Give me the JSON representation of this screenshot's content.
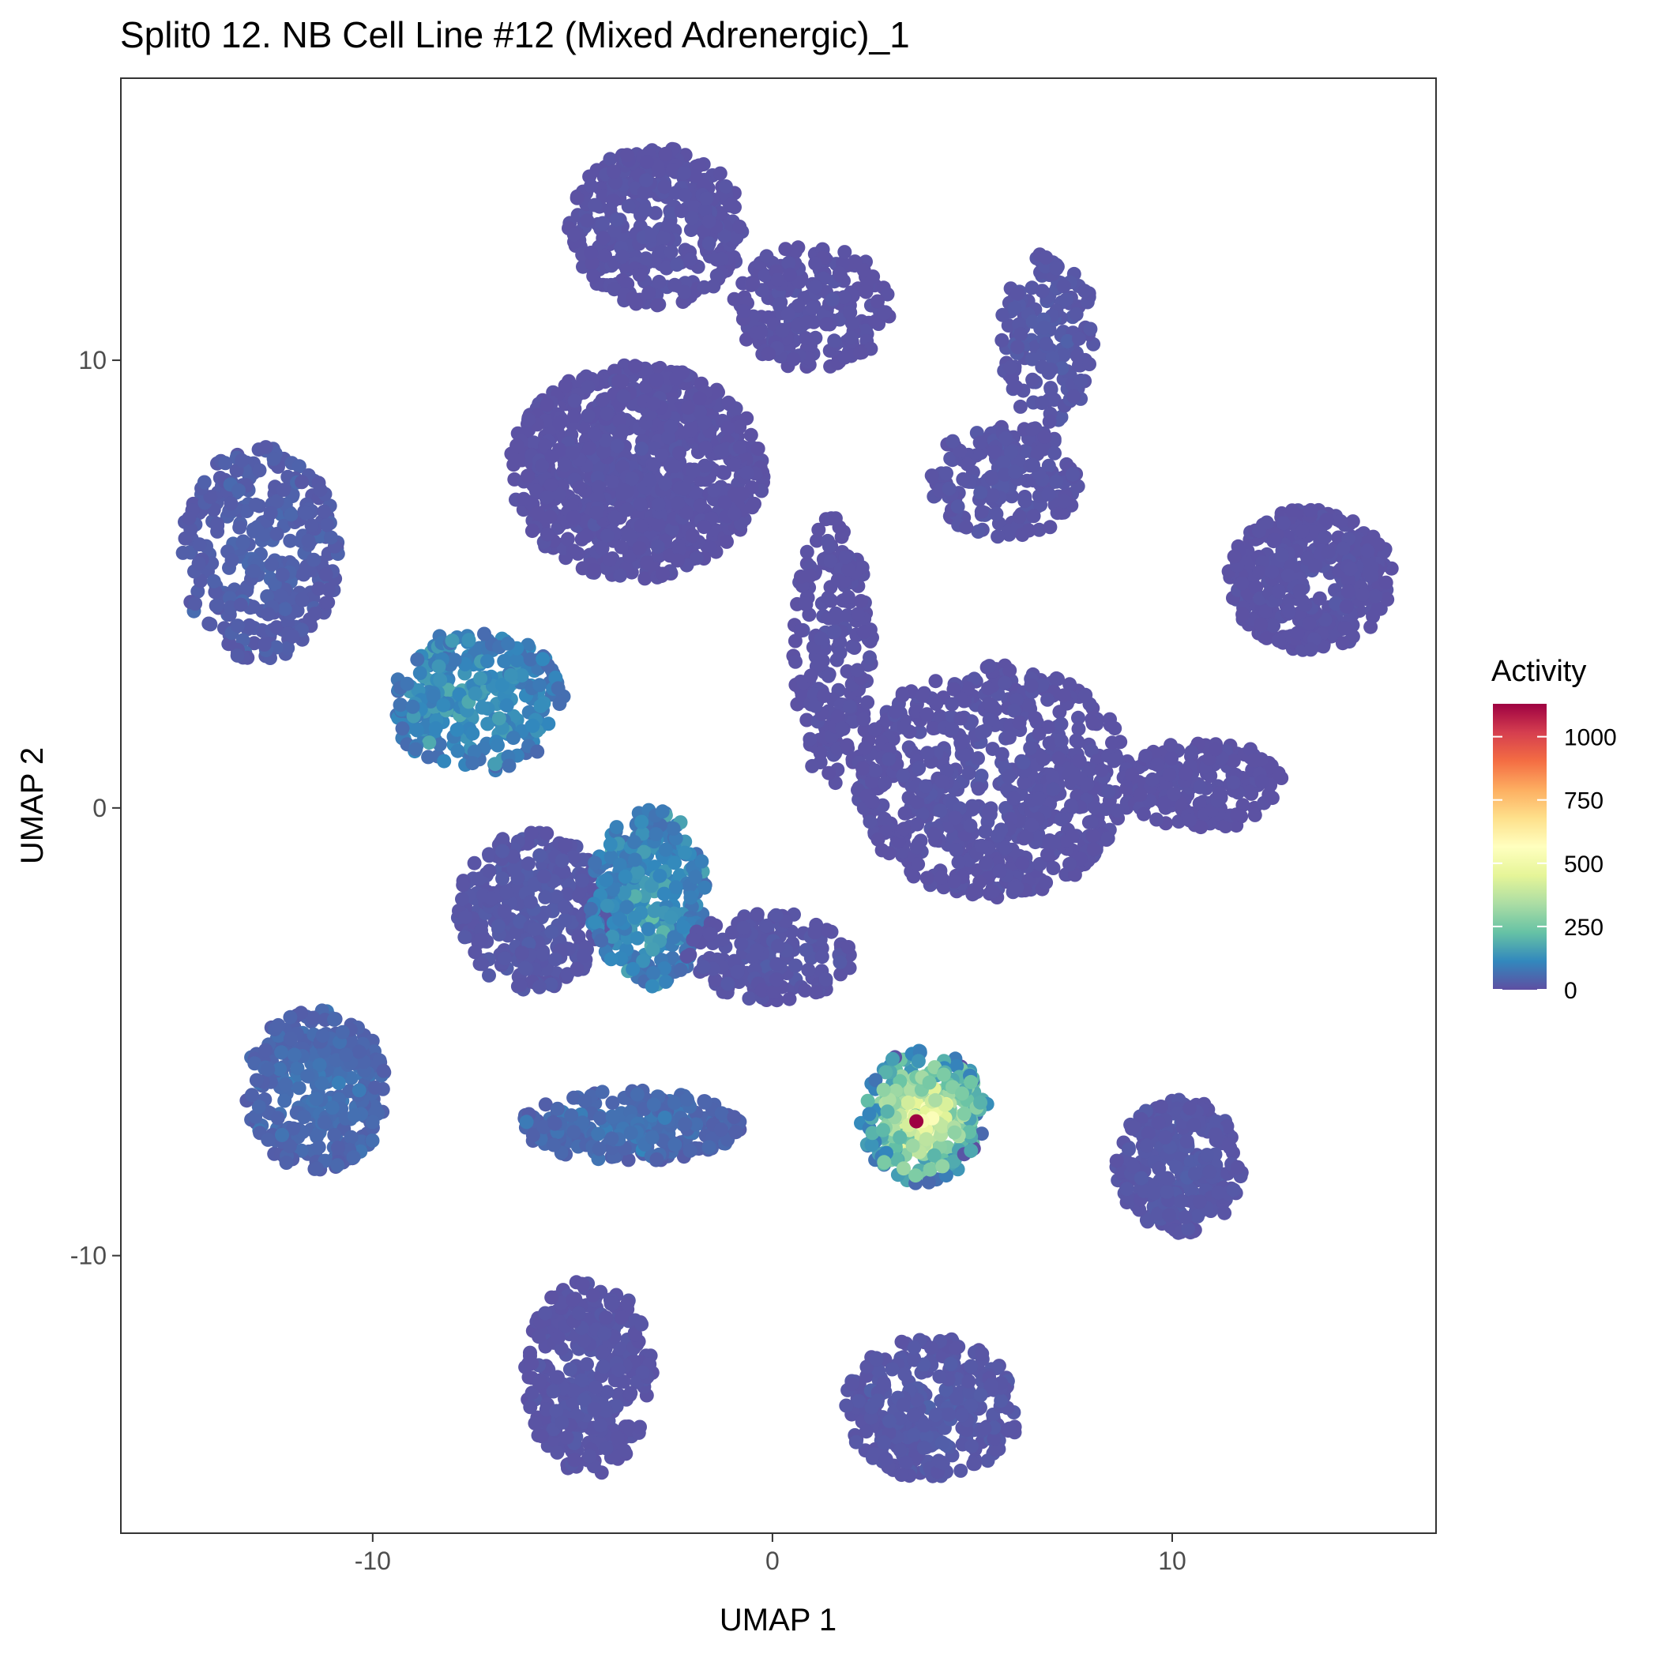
{
  "chart_data": {
    "type": "scatter",
    "title": "Split0 12. NB Cell Line #12 (Mixed Adrenergic)_1",
    "xlabel": "UMAP 1",
    "ylabel": "UMAP 2",
    "xlim": [
      -16.3,
      16.6
    ],
    "ylim": [
      -16.2,
      16.3
    ],
    "x_ticks": [
      -10,
      0,
      10
    ],
    "y_ticks": [
      -10,
      0,
      10
    ],
    "x_tick_labels": [
      "-10",
      "0",
      "10"
    ],
    "y_tick_labels": [
      "-10",
      "0",
      "10"
    ],
    "grid": false,
    "legend": {
      "title": "Activity",
      "position": "right",
      "type": "colorbar",
      "min": 0,
      "max": 1130,
      "ticks": [
        0,
        250,
        500,
        750,
        1000
      ],
      "tick_labels": [
        "0",
        "250",
        "500",
        "750",
        "1000"
      ],
      "colors": [
        "#5E4FA2",
        "#3288BD",
        "#66C2A5",
        "#ABDDA4",
        "#E6F598",
        "#FFFFBF",
        "#FEE08B",
        "#FDAE61",
        "#F46D43",
        "#D53E4F",
        "#9E0142"
      ]
    },
    "clusters": [
      {
        "cx": -3.4,
        "cy": 7.5,
        "rx": 3.2,
        "ry": 2.4,
        "n": 900,
        "activity": 10
      },
      {
        "cx": -2.9,
        "cy": 13.0,
        "rx": 2.2,
        "ry": 1.8,
        "n": 360,
        "activity": 12
      },
      {
        "cx": 1.0,
        "cy": 11.2,
        "rx": 2.0,
        "ry": 1.4,
        "n": 220,
        "activity": 10
      },
      {
        "cx": 5.8,
        "cy": 7.3,
        "rx": 1.9,
        "ry": 1.3,
        "n": 200,
        "activity": 15
      },
      {
        "cx": 6.9,
        "cy": 10.5,
        "rx": 1.2,
        "ry": 1.9,
        "n": 160,
        "activity": 20
      },
      {
        "cx": 1.5,
        "cy": 3.5,
        "rx": 1.0,
        "ry": 3.0,
        "n": 200,
        "activity": 10
      },
      {
        "cx": 5.5,
        "cy": 0.6,
        "rx": 3.5,
        "ry": 2.6,
        "n": 700,
        "activity": 12
      },
      {
        "cx": 13.5,
        "cy": 5.1,
        "rx": 2.1,
        "ry": 1.6,
        "n": 380,
        "activity": 10
      },
      {
        "cx": 10.8,
        "cy": 0.5,
        "rx": 2.0,
        "ry": 1.0,
        "n": 180,
        "activity": 8
      },
      {
        "cx": -12.8,
        "cy": 5.7,
        "rx": 2.0,
        "ry": 2.4,
        "n": 330,
        "activity": 35
      },
      {
        "cx": -7.4,
        "cy": 2.4,
        "rx": 2.2,
        "ry": 1.6,
        "n": 280,
        "activity": 120
      },
      {
        "cx": -6.0,
        "cy": -2.3,
        "rx": 1.9,
        "ry": 1.8,
        "n": 330,
        "activity": 20
      },
      {
        "cx": -3.1,
        "cy": -2.0,
        "rx": 1.5,
        "ry": 2.0,
        "n": 300,
        "activity": 120
      },
      {
        "cx": -0.1,
        "cy": -3.3,
        "rx": 2.2,
        "ry": 1.0,
        "n": 160,
        "activity": 15
      },
      {
        "cx": -11.4,
        "cy": -6.3,
        "rx": 1.8,
        "ry": 1.8,
        "n": 320,
        "activity": 60
      },
      {
        "cx": -3.6,
        "cy": -7.1,
        "rx": 2.8,
        "ry": 0.8,
        "n": 260,
        "activity": 60
      },
      {
        "cx": 3.8,
        "cy": -6.9,
        "rx": 1.6,
        "ry": 1.5,
        "n": 280,
        "activity": 380
      },
      {
        "cx": 10.2,
        "cy": -8.0,
        "rx": 1.6,
        "ry": 1.5,
        "n": 280,
        "activity": 20
      },
      {
        "cx": -4.6,
        "cy": -12.7,
        "rx": 1.6,
        "ry": 2.2,
        "n": 320,
        "activity": 15
      },
      {
        "cx": 4.0,
        "cy": -13.4,
        "rx": 2.2,
        "ry": 1.6,
        "n": 320,
        "activity": 20
      }
    ],
    "highlight_points": [
      {
        "x": 3.6,
        "y": -7.0,
        "value": 1130
      }
    ]
  }
}
